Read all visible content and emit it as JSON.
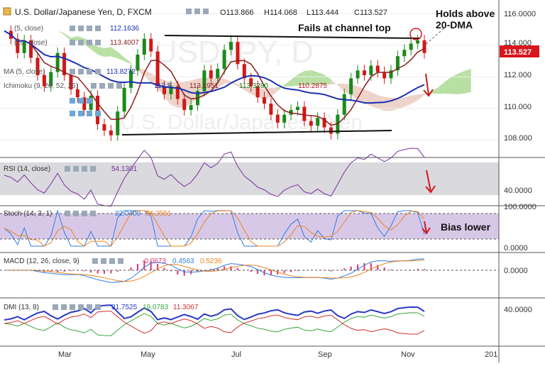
{
  "header": {
    "symbol": "U.S. Dollar/Japanese Yen, D, FXCM",
    "open": "O113.866",
    "high": "H114.068",
    "low": "L113.444",
    "close": "C113.527"
  },
  "overlay_labels": [
    {
      "text": "(5, close)",
      "value": "112.1636",
      "color": "#1c2fb0"
    },
    {
      "text": "(20, close)",
      "value": "113.4007",
      "color": "#8b1c1c"
    },
    {
      "text": "MA (5, close)",
      "value": "113.8272",
      "color": "#1c2fb0"
    },
    {
      "text": "Ichimoku (9, 26, 52, 26)",
      "values": [
        "113.8",
        "113.1951",
        "113.3280",
        "110.2875"
      ],
      "colors": [
        "#1c2fb0",
        "#8b1c1c",
        "#1a7a1a",
        "#c0152f"
      ]
    }
  ],
  "annotations": {
    "channel_fail": "Fails at channel top",
    "dma_hold_line1": "Holds above",
    "dma_hold_line2": "20-DMA",
    "bias": "Bias lower"
  },
  "price_axis": {
    "ticks": [
      "116.0000",
      "114.000",
      "112.000",
      "110.000",
      "108.000"
    ],
    "current_price": "113.527",
    "current_color": "#d9161c"
  },
  "x_axis": {
    "ticks": [
      "Mar",
      "May",
      "Jul",
      "Sep",
      "Nov",
      "201"
    ]
  },
  "indicators": {
    "rsi": {
      "label": "RSI (14, close)",
      "value": "54.1301",
      "ticks": [
        "40.0000"
      ]
    },
    "stoch": {
      "label": "Stoch (14, 3, 1)",
      "values": [
        "32.0409",
        "54.2551"
      ],
      "ticks": [
        "100.0000",
        "0.0000"
      ]
    },
    "macd": {
      "label": "MACD (12, 26, close, 9)",
      "values": [
        "-0.0673",
        "0.4563",
        "0.5236"
      ],
      "ticks": [
        "0.0000"
      ]
    },
    "dmi": {
      "label": "DMI (13, 8)",
      "values": [
        "31.7525",
        "19.0783",
        "11.3067"
      ],
      "ticks": [
        "40.0000"
      ]
    }
  },
  "watermark": "USDJPY, D",
  "watermark_sub": "U.S. Dollar/Japanese Yen",
  "colors": {
    "up": "#1a8a1a",
    "down": "#d01818",
    "ma_fast": "#1c2fb0",
    "ma_slow": "#8b1c1c",
    "rsi_line": "#7a2f9e",
    "stoch_k": "#2f7de0",
    "stoch_d": "#f0831a",
    "macd_line": "#2f7de0",
    "signal_line": "#f0831a",
    "hist": "#e0307a",
    "adx": "#2b39c8",
    "di_plus": "#3aa63a",
    "di_minus": "#d22f2f",
    "cloud_green": "#a8d88c",
    "cloud_red": "#e8c8bb",
    "band_gray": "#d9d9de",
    "band_purple": "#d8c8e8"
  },
  "chart_data": {
    "type": "line",
    "title": "U.S. Dollar/Japanese Yen, D, FXCM",
    "x_labels": [
      "Mar",
      "May",
      "Jul",
      "Sep",
      "Nov",
      "201"
    ],
    "ylim": [
      107,
      116.6
    ],
    "series": [
      {
        "name": "USD/JPY close",
        "values": [
          114.9,
          114.4,
          113.5,
          114.3,
          113.2,
          112.1,
          111.4,
          112.3,
          113.5,
          112.1,
          111.2,
          110.7,
          109.9,
          110.8,
          109.0,
          108.6,
          108.3,
          109.8,
          111.3,
          112.4,
          113.4,
          114.4,
          113.6,
          111.4,
          110.9,
          111.4,
          110.6,
          109.9,
          110.2,
          111.1,
          112.4,
          111.9,
          112.5,
          113.7,
          114.2,
          112.8,
          111.9,
          111.4,
          110.7,
          110.3,
          109.6,
          109.1,
          109.6,
          109.9,
          110.1,
          109.2,
          108.9,
          109.4,
          108.8,
          108.4,
          109.6,
          110.9,
          111.9,
          112.4,
          112.1,
          112.7,
          112.3,
          111.9,
          112.4,
          113.3,
          113.7,
          114.1,
          114.3,
          113.5
        ]
      }
    ],
    "indicator_values": {
      "RSI (14, close)": [
        54.1301
      ],
      "Stoch (14, 3, 1)": [
        32.0409,
        54.2551
      ],
      "MACD (12, 26, close, 9)": [
        -0.0673,
        0.4563,
        0.5236
      ],
      "DMI (13, 8)": [
        31.7525,
        19.0783,
        11.3067
      ]
    }
  }
}
